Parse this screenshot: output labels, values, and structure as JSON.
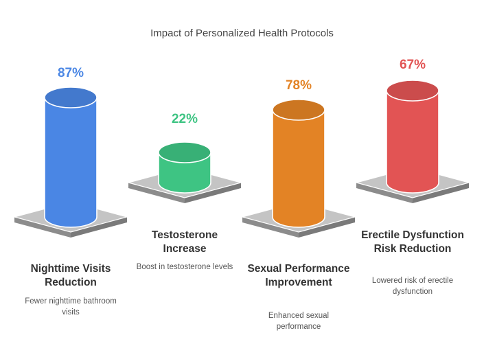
{
  "chart_data": {
    "type": "bar",
    "title": "Impact of Personalized Health Protocols",
    "categories": [
      "Nighttime Visits Reduction",
      "Testosterone Increase",
      "Sexual Performance Improvement",
      "Erectile Dysfunction Risk Reduction"
    ],
    "values": [
      87,
      22,
      78,
      67
    ],
    "value_labels": [
      "87%",
      "22%",
      "78%",
      "67%"
    ],
    "descriptions": [
      "Fewer nighttime bathroom visits",
      "Boost in testosterone levels",
      "Enhanced sexual performance",
      "Lowered risk of erectile dysfunction"
    ],
    "colors": [
      "#4a86e4",
      "#3ec483",
      "#e38325",
      "#e25454"
    ],
    "ylim": [
      0,
      100
    ]
  }
}
